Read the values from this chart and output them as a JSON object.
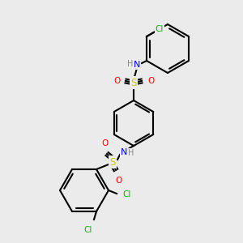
{
  "bg_color": "#ebebeb",
  "bond_color": "#000000",
  "bond_width": 1.5,
  "atom_colors": {
    "N": "#0000ff",
    "O": "#ff0000",
    "S": "#cccc00",
    "Cl": "#00bb00",
    "H": "#888888",
    "C": "#000000"
  },
  "font_size": 7.5
}
